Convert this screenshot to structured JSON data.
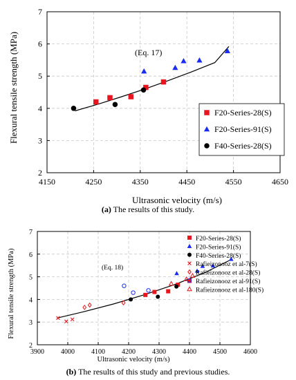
{
  "chart_data": [
    {
      "type": "scatter",
      "title": "",
      "xlabel": "Ultrasonic velocity (m/s)",
      "ylabel": "Flexural tensile strength (MPa)",
      "xlim": [
        4150,
        4650
      ],
      "ylim": [
        2,
        7
      ],
      "xticks": [
        "4150",
        "4250",
        "4350",
        "4450",
        "4550",
        "4650"
      ],
      "yticks": [
        "2",
        "3",
        "4",
        "5",
        "6",
        "7"
      ],
      "grid": true,
      "legend_position": "right",
      "annotation": "(Eq. 17)",
      "fit_curve": {
        "x": [
          4210,
          4260,
          4310,
          4360,
          4410,
          4460,
          4510,
          4540
        ],
        "y": [
          3.92,
          4.13,
          4.36,
          4.6,
          4.86,
          5.13,
          5.42,
          5.92
        ]
      },
      "series": [
        {
          "name": "F20-Series-28(S)",
          "marker": "square",
          "color": "#e8141e",
          "x": [
            4255,
            4285,
            4330,
            4362,
            4400
          ],
          "y": [
            4.2,
            4.33,
            4.36,
            4.65,
            4.82
          ]
        },
        {
          "name": "F20-Series-91(S)",
          "marker": "triangle",
          "color": "#1a2cf0",
          "x": [
            4358,
            4425,
            4443,
            4477,
            4537
          ],
          "y": [
            5.15,
            5.26,
            5.47,
            5.49,
            5.78
          ]
        },
        {
          "name": "F40-Series-28(S)",
          "marker": "circle",
          "color": "#000000",
          "x": [
            4207,
            4296,
            4357
          ],
          "y": [
            4.0,
            4.12,
            4.57
          ]
        }
      ],
      "caption_tag": "(a)",
      "caption_text": " The results of this study."
    },
    {
      "type": "scatter",
      "title": "",
      "xlabel": "Ultrasonic velocity (m/s)",
      "ylabel": "Flexural tensile strength (MPa)",
      "xlim": [
        3900,
        4600
      ],
      "ylim": [
        2,
        7
      ],
      "xticks": [
        "3900",
        "4000",
        "4100",
        "4200",
        "4300",
        "4400",
        "4500",
        "4600"
      ],
      "yticks": [
        "2",
        "3",
        "4",
        "5",
        "6",
        "7"
      ],
      "grid": true,
      "legend_position": "top-left",
      "annotation": "(Eq. 18)",
      "fit_curve": {
        "x": [
          3965,
          4050,
          4150,
          4250,
          4350,
          4450,
          4540
        ],
        "y": [
          3.18,
          3.45,
          3.8,
          4.2,
          4.65,
          5.18,
          5.78
        ]
      },
      "series": [
        {
          "name": "F20-Series-28(S)",
          "marker": "square",
          "color": "#e8141e",
          "x": [
            4255,
            4285,
            4330,
            4362,
            4400
          ],
          "y": [
            4.2,
            4.33,
            4.36,
            4.65,
            4.82
          ]
        },
        {
          "name": "F20-Series-91(S)",
          "marker": "triangle",
          "color": "#1a2cf0",
          "x": [
            4358,
            4425,
            4443,
            4477,
            4537
          ],
          "y": [
            5.15,
            5.26,
            5.47,
            5.49,
            5.78
          ]
        },
        {
          "name": "F40-Series-28(S)",
          "marker": "circle",
          "color": "#000000",
          "x": [
            4207,
            4296,
            4357
          ],
          "y": [
            4.0,
            4.12,
            4.57
          ]
        },
        {
          "name": "Rafieizonooz et al-7(S)",
          "marker": "x",
          "color": "#e8141e",
          "x": [
            3968,
            3995,
            4015
          ],
          "y": [
            3.18,
            3.03,
            3.12
          ]
        },
        {
          "name": "Rafieizonooz et al-28(S)",
          "marker": "diamond-open",
          "color": "#e8141e",
          "x": [
            4055,
            4072,
            4183
          ],
          "y": [
            3.65,
            3.75,
            3.85
          ]
        },
        {
          "name": "Rafieizonooz et al-91(S)",
          "marker": "circle-open",
          "color": "#1a2cf0",
          "x": [
            4185,
            4215,
            4265
          ],
          "y": [
            4.6,
            4.3,
            4.4
          ]
        },
        {
          "name": "Rafieizonooz et al-180(S)",
          "marker": "triangle-open",
          "color": "#e8141e",
          "x": [
            4340,
            4390,
            4410
          ],
          "y": [
            4.7,
            4.9,
            5.05
          ]
        }
      ],
      "caption_tag": "(b)",
      "caption_text": " The results of this study and previous studies."
    }
  ]
}
